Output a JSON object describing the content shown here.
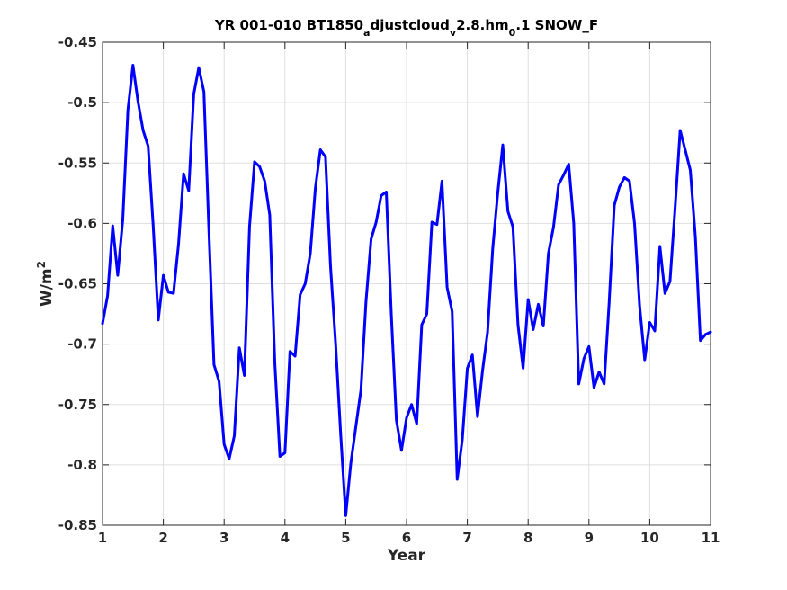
{
  "chart_data": {
    "type": "line",
    "title": {
      "parts": [
        {
          "text": "YR 001-010 BT1850",
          "shift": "none"
        },
        {
          "text": "a",
          "shift": "sub"
        },
        {
          "text": "djustcloud",
          "shift": "none"
        },
        {
          "text": "v",
          "shift": "sub"
        },
        {
          "text": "2.8.hm",
          "shift": "none"
        },
        {
          "text": "0",
          "shift": "sub"
        },
        {
          "text": ".1 SNOW_F",
          "shift": "none"
        }
      ]
    },
    "xlabel": "Year",
    "ylabel": {
      "parts": [
        {
          "text": "W/m",
          "shift": "none"
        },
        {
          "text": "2",
          "shift": "super"
        }
      ]
    },
    "xlim": [
      1,
      11
    ],
    "ylim": [
      -0.85,
      -0.45
    ],
    "xticks": [
      1,
      2,
      3,
      4,
      5,
      6,
      7,
      8,
      9,
      10,
      11
    ],
    "xtick_labels": [
      "1",
      "2",
      "3",
      "4",
      "5",
      "6",
      "7",
      "8",
      "9",
      "10",
      "11"
    ],
    "yticks": [
      -0.85,
      -0.8,
      -0.75,
      -0.7,
      -0.65,
      -0.6,
      -0.55,
      -0.5,
      -0.45
    ],
    "ytick_labels": [
      "-0.85",
      "-0.8",
      "-0.75",
      "-0.7",
      "-0.65",
      "-0.6",
      "-0.55",
      "-0.5",
      "-0.45"
    ],
    "grid": true,
    "line_color": "#0000ff",
    "series": [
      {
        "x": [
          1.0,
          1.083,
          1.167,
          1.25,
          1.333,
          1.417,
          1.5,
          1.583,
          1.667,
          1.75,
          1.833,
          1.917,
          2.0,
          2.083,
          2.167,
          2.25,
          2.333,
          2.417,
          2.5,
          2.583,
          2.667,
          2.75,
          2.833,
          2.917,
          3.0,
          3.083,
          3.167,
          3.25,
          3.333,
          3.417,
          3.5,
          3.583,
          3.667,
          3.75,
          3.833,
          3.917,
          4.0,
          4.083,
          4.167,
          4.25,
          4.333,
          4.417,
          4.5,
          4.583,
          4.667,
          4.75,
          4.833,
          4.917,
          5.0,
          5.083,
          5.167,
          5.25,
          5.333,
          5.417,
          5.5,
          5.583,
          5.667,
          5.75,
          5.833,
          5.917,
          6.0,
          6.083,
          6.167,
          6.25,
          6.333,
          6.417,
          6.5,
          6.583,
          6.667,
          6.75,
          6.833,
          6.917,
          7.0,
          7.083,
          7.167,
          7.25,
          7.333,
          7.417,
          7.5,
          7.583,
          7.667,
          7.75,
          7.833,
          7.917,
          8.0,
          8.083,
          8.167,
          8.25,
          8.333,
          8.417,
          8.5,
          8.583,
          8.667,
          8.75,
          8.833,
          8.917,
          9.0,
          9.083,
          9.167,
          9.25,
          9.333,
          9.417,
          9.5,
          9.583,
          9.667,
          9.75,
          9.833,
          9.917,
          10.0,
          10.083,
          10.167,
          10.25,
          10.333,
          10.417,
          10.5,
          10.583,
          10.667,
          10.75,
          10.833,
          10.917,
          11.0
        ],
        "y": [
          -0.683,
          -0.66,
          -0.602,
          -0.643,
          -0.597,
          -0.506,
          -0.469,
          -0.499,
          -0.523,
          -0.536,
          -0.602,
          -0.68,
          -0.643,
          -0.657,
          -0.658,
          -0.617,
          -0.559,
          -0.573,
          -0.493,
          -0.471,
          -0.491,
          -0.607,
          -0.717,
          -0.731,
          -0.783,
          -0.795,
          -0.776,
          -0.703,
          -0.726,
          -0.603,
          -0.549,
          -0.553,
          -0.565,
          -0.593,
          -0.715,
          -0.793,
          -0.79,
          -0.706,
          -0.71,
          -0.659,
          -0.65,
          -0.625,
          -0.571,
          -0.539,
          -0.545,
          -0.636,
          -0.699,
          -0.775,
          -0.842,
          -0.799,
          -0.768,
          -0.738,
          -0.665,
          -0.613,
          -0.599,
          -0.577,
          -0.574,
          -0.676,
          -0.763,
          -0.788,
          -0.761,
          -0.75,
          -0.766,
          -0.684,
          -0.675,
          -0.599,
          -0.601,
          -0.565,
          -0.653,
          -0.673,
          -0.812,
          -0.779,
          -0.72,
          -0.709,
          -0.76,
          -0.722,
          -0.69,
          -0.621,
          -0.575,
          -0.535,
          -0.59,
          -0.603,
          -0.684,
          -0.72,
          -0.663,
          -0.688,
          -0.667,
          -0.685,
          -0.625,
          -0.603,
          -0.568,
          -0.56,
          -0.551,
          -0.6,
          -0.733,
          -0.712,
          -0.702,
          -0.736,
          -0.723,
          -0.733,
          -0.665,
          -0.585,
          -0.57,
          -0.562,
          -0.565,
          -0.6,
          -0.668,
          -0.713,
          -0.682,
          -0.689,
          -0.619,
          -0.658,
          -0.648,
          -0.587,
          -0.523,
          -0.539,
          -0.556,
          -0.611,
          -0.697,
          -0.692,
          -0.69
        ]
      }
    ]
  }
}
